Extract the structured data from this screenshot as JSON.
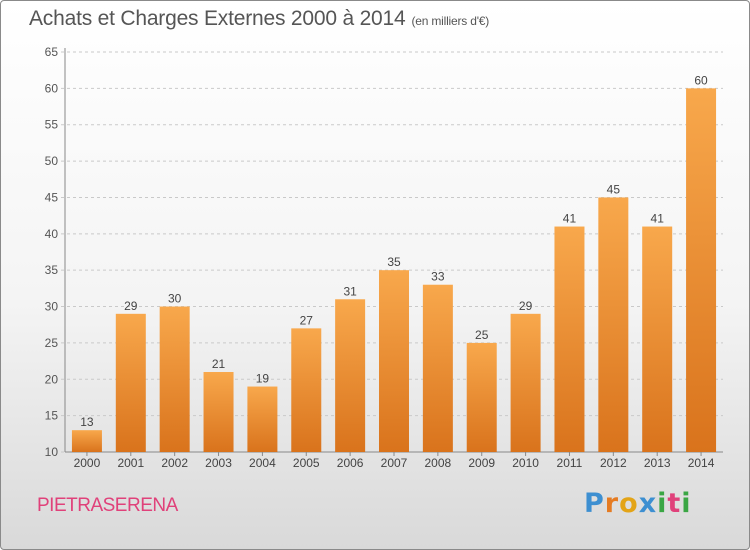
{
  "header": {
    "title": "Achats et Charges Externes 2000 à 2014",
    "unit": "(en milliers d'€)"
  },
  "footer": {
    "commune": "PIETRASERENA",
    "logo_text": "Proxiti"
  },
  "colors": {
    "bar_light": "#f8a84c",
    "bar_dark": "#d9731c",
    "commune_text": "#e0417a",
    "logo_letters": [
      "#3d8fd1",
      "#e57b22",
      "#e3a417",
      "#3d8fd1",
      "#3aa644",
      "#e0417a",
      "#3aa644"
    ]
  },
  "chart_data": {
    "type": "bar",
    "categories": [
      "2000",
      "2001",
      "2002",
      "2003",
      "2004",
      "2005",
      "2006",
      "2007",
      "2008",
      "2009",
      "2010",
      "2011",
      "2012",
      "2013",
      "2014"
    ],
    "values": [
      13,
      29,
      30,
      21,
      19,
      27,
      31,
      35,
      33,
      25,
      29,
      41,
      45,
      41,
      60
    ],
    "title": "Achats et Charges Externes 2000 à 2014",
    "subtitle": "(en milliers d'€)",
    "xlabel": "",
    "ylabel": "",
    "ylim": [
      10,
      65
    ],
    "yticks": [
      10,
      15,
      20,
      25,
      30,
      35,
      40,
      45,
      50,
      55,
      60,
      65
    ],
    "grid": "horizontal dashed",
    "data_labels": true
  }
}
